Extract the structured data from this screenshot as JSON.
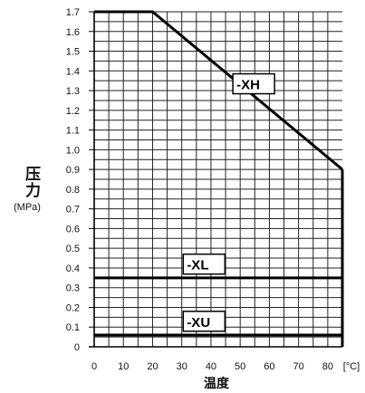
{
  "chart_data": {
    "type": "line",
    "ylabel_main": "压力",
    "ylabel_unit": "(MPa)",
    "xlabel": "温度",
    "x_unit": "[°C]",
    "xlim": [
      0,
      85
    ],
    "ylim": [
      0,
      1.7
    ],
    "x_ticks": [
      "0",
      "10",
      "20",
      "30",
      "40",
      "50",
      "60",
      "70",
      "80"
    ],
    "y_ticks": [
      "0",
      "0.1",
      "0.2",
      "0.3",
      "0.4",
      "0.5",
      "0.6",
      "0.7",
      "0.8",
      "0.9",
      "1.0",
      "1.1",
      "1.2",
      "1.3",
      "1.4",
      "1.5",
      "1.6",
      "1.7"
    ],
    "grid": true,
    "series": [
      {
        "name": "-XH",
        "x": [
          0,
          20,
          85
        ],
        "y": [
          1.7,
          1.7,
          0.9
        ]
      },
      {
        "name": "-XL",
        "x": [
          0,
          85
        ],
        "y": [
          0.35,
          0.35
        ]
      },
      {
        "name": "-XU",
        "x": [
          0,
          85
        ],
        "y": [
          0.06,
          0.06
        ]
      }
    ]
  }
}
